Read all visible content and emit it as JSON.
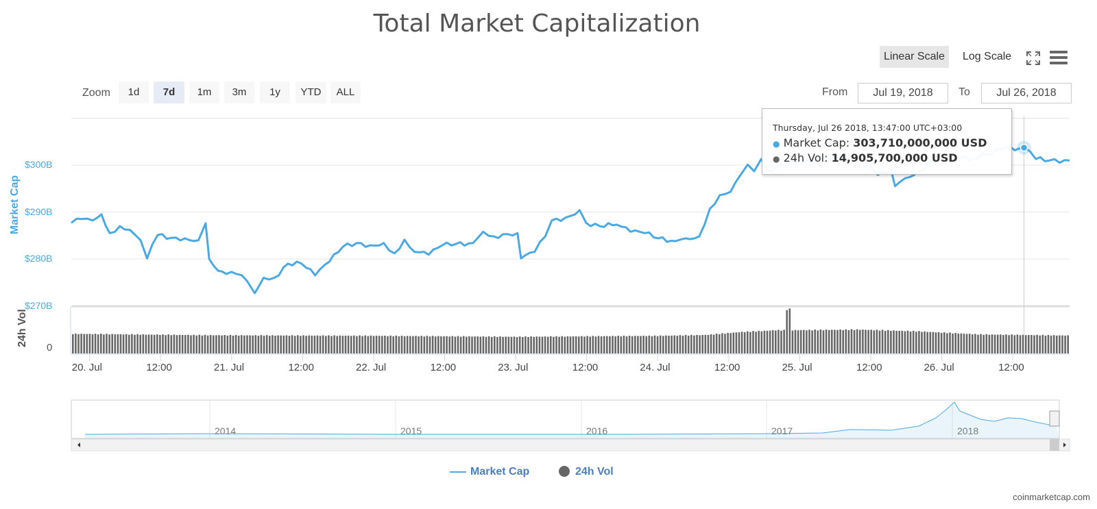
{
  "header": {
    "title": "Total Market Capitalization"
  },
  "toolbar": {
    "linear_scale": "Linear Scale",
    "log_scale": "Log Scale",
    "fullscreen_icon": "fullscreen-icon",
    "menu_icon": "hamburger-menu-icon"
  },
  "zoom": {
    "label": "Zoom",
    "buttons": [
      "1d",
      "7d",
      "1m",
      "3m",
      "1y",
      "YTD",
      "ALL"
    ],
    "selected": "7d"
  },
  "range": {
    "from_label": "From",
    "from": "Jul 19, 2018",
    "to_label": "To",
    "to": "Jul 26, 2018"
  },
  "tooltip": {
    "date": "Thursday, Jul 26 2018, 13:47:00 UTC+03:00",
    "mc_label": "Market Cap: ",
    "mc_value": "303,710,000,000 USD",
    "vol_label": "24h Vol: ",
    "vol_value": "14,905,700,000 USD"
  },
  "colors": {
    "market_cap": "#4aa8e2",
    "volume": "#666666"
  },
  "watermark": "coinmarketcap.com",
  "chart_data": {
    "type": "line",
    "title": "Total Market Capitalization",
    "x_unit": "hours since 20 Jul 2018 00:00",
    "xlim": [
      -3.1,
      165.6
    ],
    "x_ticks": [
      {
        "h": 0,
        "label": "20. Jul"
      },
      {
        "h": 12,
        "label": "12:00"
      },
      {
        "h": 24,
        "label": "21. Jul"
      },
      {
        "h": 36,
        "label": "12:00"
      },
      {
        "h": 48,
        "label": "22. Jul"
      },
      {
        "h": 60,
        "label": "12:00"
      },
      {
        "h": 72,
        "label": "23. Jul"
      },
      {
        "h": 84,
        "label": "12:00"
      },
      {
        "h": 96,
        "label": "24. Jul"
      },
      {
        "h": 108,
        "label": "12:00"
      },
      {
        "h": 120,
        "label": "25. Jul"
      },
      {
        "h": 132,
        "label": "12:00"
      },
      {
        "h": 144,
        "label": "26. Jul"
      },
      {
        "h": 156,
        "label": "12:00"
      }
    ],
    "y_axis": {
      "label": "Market Cap",
      "ticks": [
        {
          "v": 270,
          "label": "$270B"
        },
        {
          "v": 280,
          "label": "$280B"
        },
        {
          "v": 290,
          "label": "$290B"
        },
        {
          "v": 300,
          "label": "$300B"
        }
      ],
      "ylim": [
        268.5,
        310.5
      ],
      "unit": "billion USD"
    },
    "vol_axis": {
      "label": "24h Vol",
      "ticks": [
        {
          "v": 0,
          "label": "0"
        }
      ],
      "ylim": [
        0,
        39
      ],
      "unit": "billion USD"
    },
    "series": [
      {
        "name": "Market Cap",
        "points": [
          [
            -3.1,
            287.7
          ],
          [
            -1.3,
            288.5
          ],
          [
            0.5,
            288.2
          ],
          [
            2,
            289.5
          ],
          [
            3.4,
            285.5
          ],
          [
            5.1,
            287
          ],
          [
            6.8,
            286.2
          ],
          [
            8.6,
            284
          ],
          [
            9.7,
            280.1
          ],
          [
            11.5,
            285.1
          ],
          [
            13.8,
            284.5
          ],
          [
            16.1,
            284.4
          ],
          [
            18.4,
            284
          ],
          [
            19.6,
            287.6
          ],
          [
            20.2,
            280
          ],
          [
            21.7,
            277.5
          ],
          [
            23.1,
            276.8
          ],
          [
            24.8,
            276.8
          ],
          [
            26.6,
            275.3
          ],
          [
            27.9,
            272.7
          ],
          [
            29.4,
            276
          ],
          [
            31.2,
            276
          ],
          [
            33.5,
            279
          ],
          [
            35.8,
            279
          ],
          [
            38.1,
            276.5
          ],
          [
            40.5,
            279.4
          ],
          [
            42.8,
            282.6
          ],
          [
            45.1,
            283.4
          ],
          [
            47.4,
            282.9
          ],
          [
            49.7,
            283.4
          ],
          [
            51.5,
            281.2
          ],
          [
            53.2,
            284.1
          ],
          [
            54.9,
            281.5
          ],
          [
            57.3,
            280.9
          ],
          [
            59.6,
            282.9
          ],
          [
            61.9,
            283.2
          ],
          [
            64.8,
            283.4
          ],
          [
            66.5,
            285.8
          ],
          [
            68.3,
            284.8
          ],
          [
            70.6,
            285.3
          ],
          [
            72.3,
            285.5
          ],
          [
            72.9,
            280.1
          ],
          [
            75.2,
            281.5
          ],
          [
            77,
            284.8
          ],
          [
            78.1,
            288.2
          ],
          [
            80.4,
            288.8
          ],
          [
            82.8,
            290.4
          ],
          [
            83.9,
            287.7
          ],
          [
            86.2,
            287
          ],
          [
            89.1,
            287.3
          ],
          [
            91.4,
            285.8
          ],
          [
            93.8,
            285.5
          ],
          [
            96.1,
            284.4
          ],
          [
            99,
            283.8
          ],
          [
            100.7,
            284.4
          ],
          [
            103,
            284.8
          ],
          [
            104.8,
            290.7
          ],
          [
            106.5,
            293.6
          ],
          [
            108.3,
            294.3
          ],
          [
            110,
            297.9
          ],
          [
            111.2,
            300.1
          ],
          [
            112.3,
            298.7
          ],
          [
            113.5,
            301.3
          ],
          [
            114.6,
            298.7
          ],
          [
            116.9,
            300.1
          ],
          [
            121.6,
            301
          ],
          [
            126.2,
            301.3
          ],
          [
            130.9,
            300.4
          ],
          [
            133.2,
            297.9
          ],
          [
            135.5,
            298.7
          ],
          [
            136.1,
            295.5
          ],
          [
            137.8,
            297.2
          ],
          [
            140.1,
            298.7
          ],
          [
            143.6,
            301.9
          ],
          [
            149.4,
            301.3
          ],
          [
            154,
            303.4
          ],
          [
            157.9,
            303.71
          ],
          [
            159.9,
            301.3
          ],
          [
            162.2,
            301
          ],
          [
            165.6,
            301
          ]
        ]
      },
      {
        "name": "24h Vol",
        "type": "bar",
        "points": [
          [
            -3.1,
            16.5
          ],
          [
            20,
            15.3
          ],
          [
            48,
            14.8
          ],
          [
            72,
            14
          ],
          [
            96,
            14.8
          ],
          [
            104,
            15.5
          ],
          [
            110,
            18
          ],
          [
            116,
            19.5
          ],
          [
            117.3,
            19.5
          ],
          [
            117.5,
            37
          ],
          [
            118.3,
            37
          ],
          [
            118.5,
            19.5
          ],
          [
            130,
            20
          ],
          [
            140,
            18.5
          ],
          [
            150,
            16
          ],
          [
            165.6,
            15
          ]
        ]
      }
    ],
    "highlight": {
      "h": 157.9,
      "series": "Market Cap"
    },
    "legend": {
      "placement": "bottom",
      "items": [
        "Market Cap",
        "24h Vol"
      ]
    },
    "navigator": {
      "years": [
        "2014",
        "2015",
        "2016",
        "2017",
        "2018"
      ]
    }
  }
}
